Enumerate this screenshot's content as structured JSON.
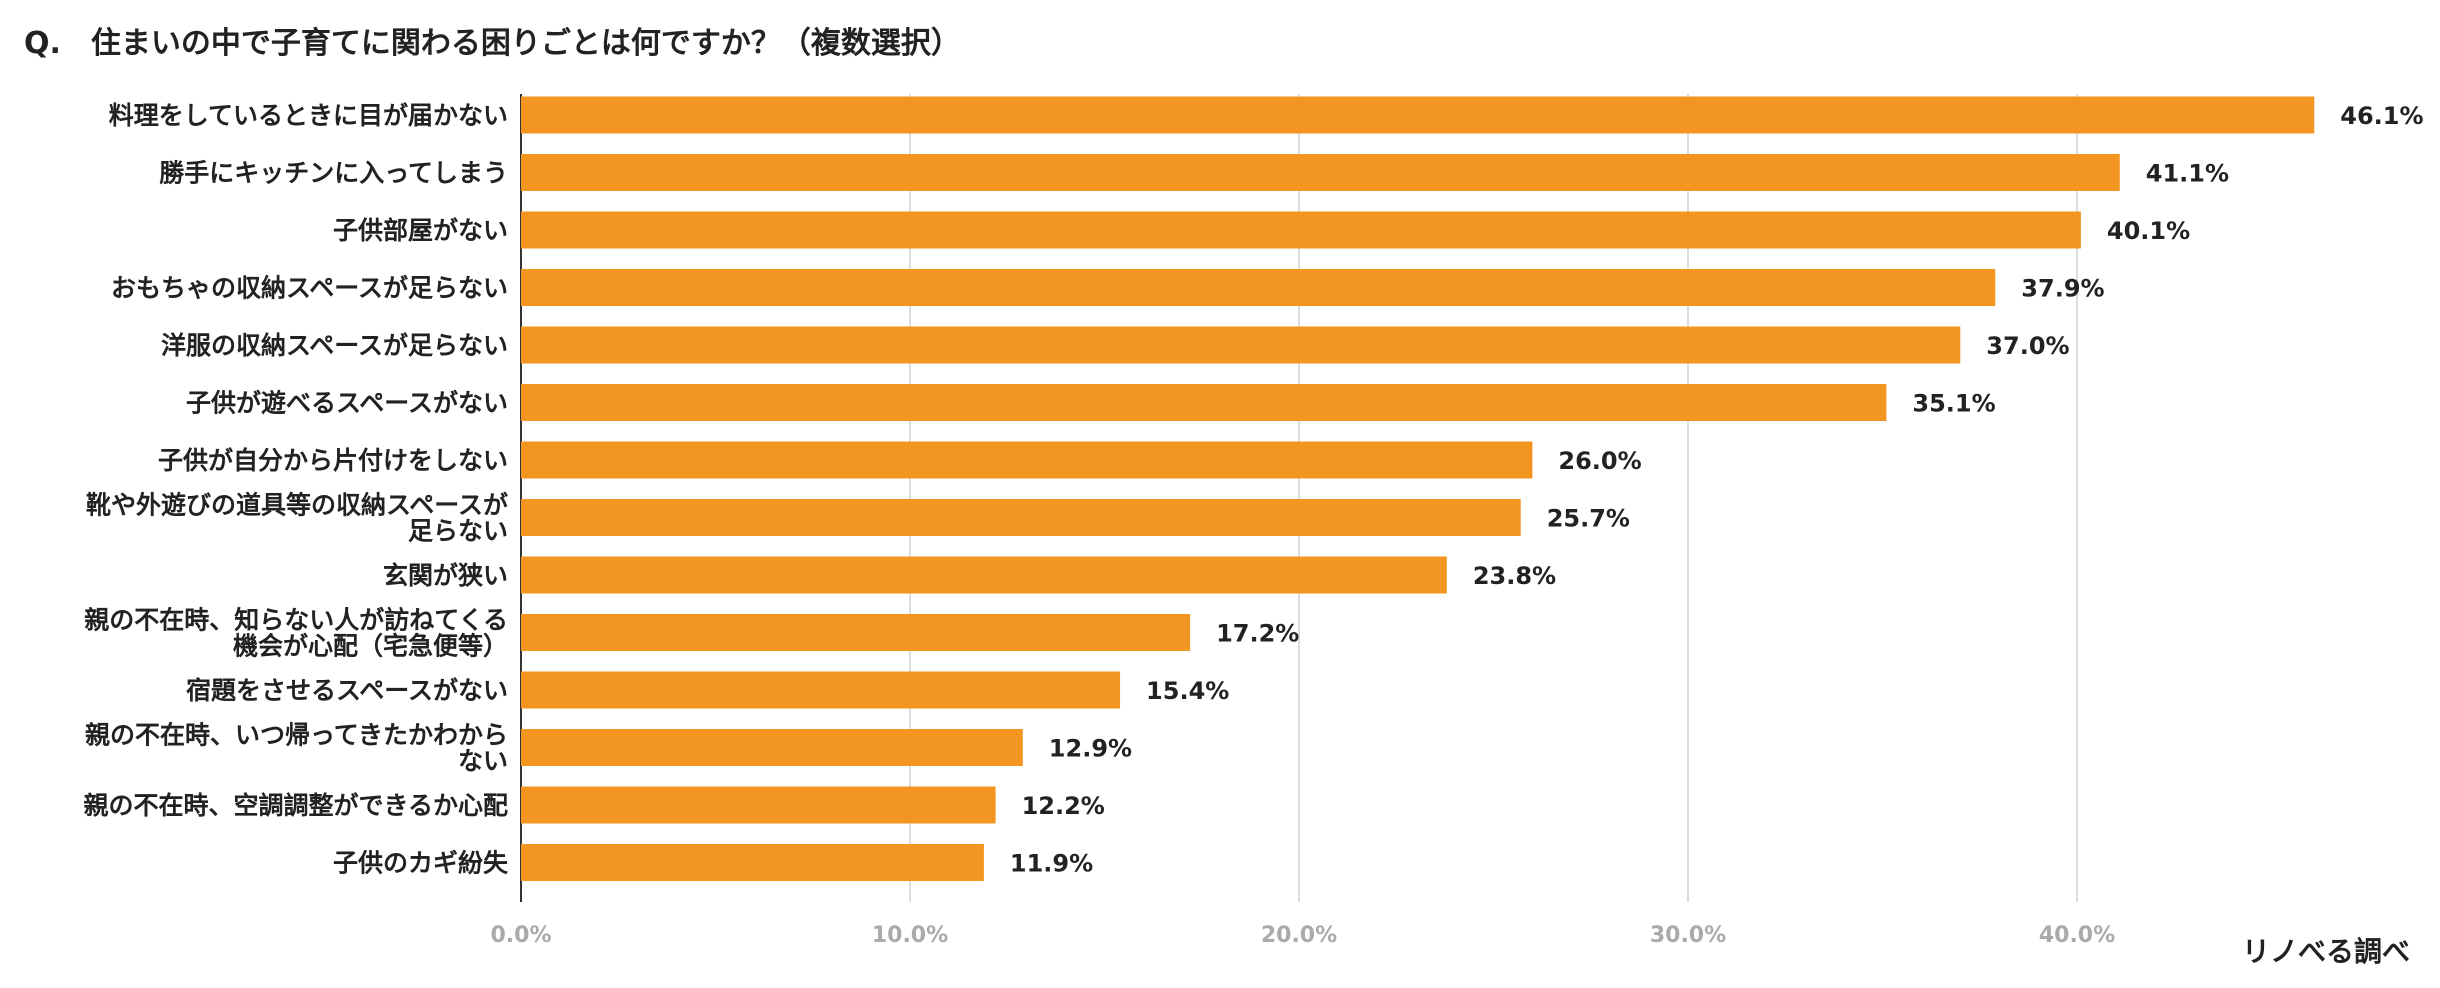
{
  "chart_data": {
    "type": "bar",
    "orientation": "horizontal",
    "title": "Q.　住まいの中で子育てに関わる困りごとは何ですか？（複数選択）",
    "source": "リノべる調べ",
    "categories": [
      "料理をしているときに目が届かない",
      "勝手にキッチンに入ってしまう",
      "子供部屋がない",
      "おもちゃの収納スペースが足らない",
      "洋服の収納スペースが足らない",
      "子供が遊べるスペースがない",
      "子供が自分から片付けをしない",
      "靴や外遊びの道具等の収納スペースが足らない",
      "玄関が狭い",
      "親の不在時、知らない人が訪ねてくる機会が心配（宅急便等）",
      "宿題をさせるスペースがない",
      "親の不在時、いつ帰ってきたかわからない",
      "親の不在時、空調調整ができるか心配",
      "子供のカギ紛失"
    ],
    "category_lines": [
      [
        "料理をしているときに目が届かない"
      ],
      [
        "勝手にキッチンに入ってしまう"
      ],
      [
        "子供部屋がない"
      ],
      [
        "おもちゃの収納スペースが足らない"
      ],
      [
        "洋服の収納スペースが足らない"
      ],
      [
        "子供が遊べるスペースがない"
      ],
      [
        "子供が自分から片付けをしない"
      ],
      [
        "靴や外遊びの道具等の収納スペースが",
        "足らない"
      ],
      [
        "玄関が狭い"
      ],
      [
        "親の不在時、知らない人が訪ねてくる",
        "機会が心配（宅急便等）"
      ],
      [
        "宿題をさせるスペースがない"
      ],
      [
        "親の不在時、いつ帰ってきたかわから",
        "ない"
      ],
      [
        "親の不在時、空調調整ができるか心配"
      ],
      [
        "子供のカギ紛失"
      ]
    ],
    "values": [
      46.1,
      41.1,
      40.1,
      37.9,
      37.0,
      35.1,
      26.0,
      25.7,
      23.8,
      17.2,
      15.4,
      12.9,
      12.2,
      11.9
    ],
    "value_labels": [
      "46.1%",
      "41.1%",
      "40.1%",
      "37.9%",
      "37.0%",
      "35.1%",
      "26.0%",
      "25.7%",
      "23.8%",
      "17.2%",
      "15.4%",
      "12.9%",
      "12.2%",
      "11.9%"
    ],
    "xticks": [
      0,
      10,
      20,
      30,
      40
    ],
    "xtick_labels": [
      "0.0%",
      "10.0%",
      "20.0%",
      "30.0%",
      "40.0%"
    ],
    "xlim": [
      0,
      48
    ],
    "grid": true,
    "legend": "none",
    "bar_color": "#F39621"
  }
}
